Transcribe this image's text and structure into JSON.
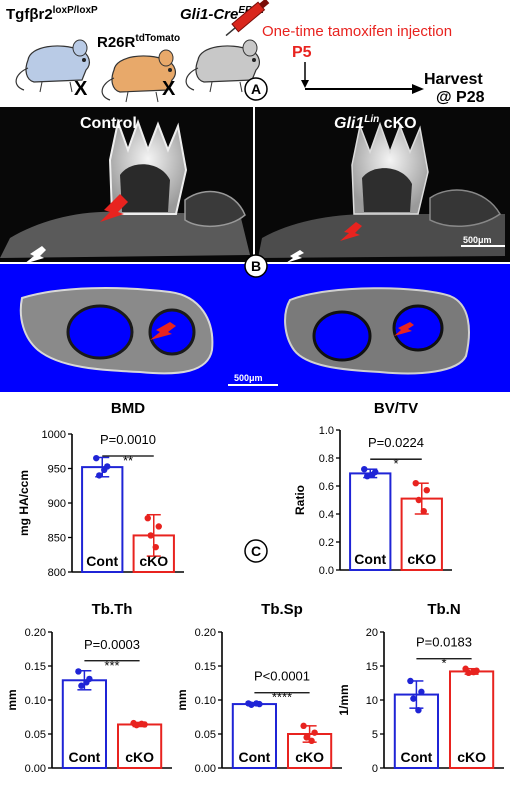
{
  "panelA": {
    "geno1_base": "Tgfβr2",
    "geno1_sup": "loxP/loxP",
    "cross_symbol": "X",
    "geno2_base": "R26R",
    "geno2_sup": "tdTomato",
    "geno3_base": "Gli1-Cre",
    "geno3_sup": "ERT2",
    "injection_text": "One-time tamoxifen injection",
    "timepoint": "P5",
    "harvest_line1": "Harvest",
    "harvest_line2": "@ P28",
    "panel_label": "A",
    "colors": {
      "injection": "#e8231f",
      "mouse1": "#b9cbe6",
      "mouse2": "#e8a96a",
      "mouse3": "#c8c8c8"
    }
  },
  "panelB": {
    "panel_label": "B",
    "control_label": "Control",
    "cko_label_italic": "Gli1",
    "cko_label_sup": "Lin",
    "cko_label_rest": " cKO",
    "scale_top": "500μm",
    "scale_bottom": "500μm",
    "colors": {
      "background_3d": "#0000ff",
      "arrow": "#e8231f"
    }
  },
  "panelC": {
    "panel_label": "C",
    "colors": {
      "cont": "#1f24d6",
      "cko": "#e8231f"
    }
  },
  "chart_data": [
    {
      "type": "bar",
      "title": "BMD",
      "ylabel": "mg HA/ccm",
      "ylim": [
        800,
        1000
      ],
      "yticks": [
        "800",
        "850",
        "900",
        "950",
        "1000"
      ],
      "categories": [
        "Cont",
        "cKO"
      ],
      "values": [
        952,
        853
      ],
      "errors": [
        14,
        30
      ],
      "points": [
        [
          965,
          953,
          940,
          948
        ],
        [
          878,
          866,
          853,
          836
        ]
      ],
      "pvalue": "P=0.0010",
      "stars": "**"
    },
    {
      "type": "bar",
      "title": "BV/TV",
      "ylabel": "Ratio",
      "ylim": [
        0,
        1.0
      ],
      "yticks": [
        "0.0",
        "0.2",
        "0.4",
        "0.6",
        "0.8",
        "1.0"
      ],
      "categories": [
        "Cont",
        "cKO"
      ],
      "values": [
        0.69,
        0.51
      ],
      "errors": [
        0.03,
        0.11
      ],
      "points": [
        [
          0.72,
          0.7,
          0.67,
          0.68
        ],
        [
          0.62,
          0.57,
          0.5,
          0.42
        ]
      ],
      "pvalue": "P=0.0224",
      "stars": "*"
    },
    {
      "type": "bar",
      "title": "Tb.Th",
      "ylabel": "mm",
      "ylim": [
        0,
        0.2
      ],
      "yticks": [
        "0.00",
        "0.05",
        "0.10",
        "0.15",
        "0.20"
      ],
      "categories": [
        "Cont",
        "cKO"
      ],
      "values": [
        0.129,
        0.064
      ],
      "errors": [
        0.014,
        0.003
      ],
      "points": [
        [
          0.142,
          0.131,
          0.121,
          0.126
        ],
        [
          0.066,
          0.064,
          0.063,
          0.065
        ]
      ],
      "pvalue": "P=0.0003",
      "stars": "***"
    },
    {
      "type": "bar",
      "title": "Tb.Sp",
      "ylabel": "mm",
      "ylim": [
        0,
        0.2
      ],
      "yticks": [
        "0.00",
        "0.05",
        "0.10",
        "0.15",
        "0.20"
      ],
      "categories": [
        "Cont",
        "cKO"
      ],
      "values": [
        0.094,
        0.05
      ],
      "errors": [
        0.002,
        0.012
      ],
      "points": [
        [
          0.095,
          0.094,
          0.093,
          0.095
        ],
        [
          0.062,
          0.052,
          0.045,
          0.04
        ]
      ],
      "pvalue": "P<0.0001",
      "stars": "****"
    },
    {
      "type": "bar",
      "title": "Tb.N",
      "ylabel": "1/mm",
      "ylim": [
        0,
        20
      ],
      "yticks": [
        "0",
        "5",
        "10",
        "15",
        "20"
      ],
      "categories": [
        "Cont",
        "cKO"
      ],
      "values": [
        10.8,
        14.2
      ],
      "errors": [
        2.0,
        0.4
      ],
      "points": [
        [
          12.8,
          11.2,
          10.2,
          8.5
        ],
        [
          14.6,
          14.3,
          14.0,
          14.1
        ]
      ],
      "pvalue": "P=0.0183",
      "stars": "*"
    }
  ]
}
